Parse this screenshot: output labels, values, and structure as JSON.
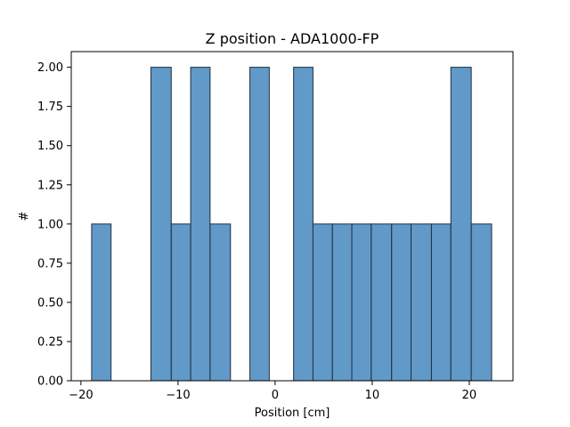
{
  "chart_data": {
    "type": "bar",
    "title": "Z position - ADA1000-FP",
    "xlabel": "Position [cm]",
    "ylabel": "#",
    "xlim": [
      -21,
      24.5
    ],
    "ylim": [
      0,
      2.1
    ],
    "xticks": [
      -20,
      -10,
      0,
      10,
      20
    ],
    "xtick_labels": [
      "−20",
      "−10",
      "0",
      "10",
      "20"
    ],
    "yticks": [
      0,
      0.25,
      0.5,
      0.75,
      1.0,
      1.25,
      1.5,
      1.75,
      2.0
    ],
    "ytick_labels": [
      "0.00",
      "0.25",
      "0.50",
      "0.75",
      "1.00",
      "1.25",
      "1.50",
      "1.75",
      "2.00"
    ],
    "bar_color": "#6199c8",
    "edge_color": "#1f2f3f",
    "bins": [
      {
        "start": -18.9,
        "end": -16.9,
        "count": 1
      },
      {
        "start": -12.8,
        "end": -10.7,
        "count": 2
      },
      {
        "start": -10.7,
        "end": -8.7,
        "count": 1
      },
      {
        "start": -8.7,
        "end": -6.7,
        "count": 2
      },
      {
        "start": -6.7,
        "end": -4.6,
        "count": 1
      },
      {
        "start": -2.6,
        "end": -0.6,
        "count": 2
      },
      {
        "start": 1.9,
        "end": 3.9,
        "count": 2
      },
      {
        "start": 3.9,
        "end": 5.9,
        "count": 1
      },
      {
        "start": 5.9,
        "end": 7.9,
        "count": 1
      },
      {
        "start": 7.9,
        "end": 9.9,
        "count": 1
      },
      {
        "start": 9.9,
        "end": 12.0,
        "count": 1
      },
      {
        "start": 12.0,
        "end": 14.0,
        "count": 1
      },
      {
        "start": 14.0,
        "end": 16.1,
        "count": 1
      },
      {
        "start": 16.1,
        "end": 18.1,
        "count": 1
      },
      {
        "start": 18.1,
        "end": 20.2,
        "count": 2
      },
      {
        "start": 20.2,
        "end": 22.3,
        "count": 1
      }
    ]
  }
}
